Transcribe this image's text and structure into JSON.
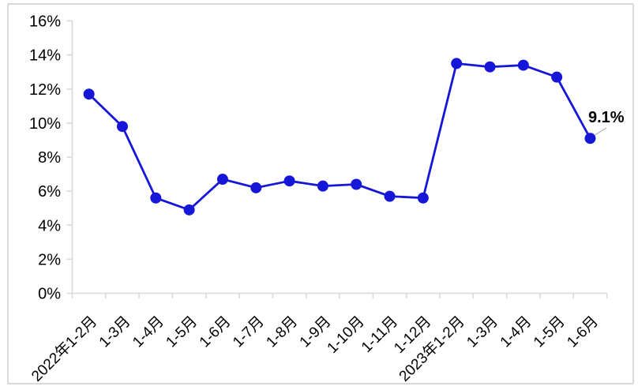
{
  "chart_data": {
    "type": "line",
    "title": "",
    "categories": [
      "2022年1-2月",
      "1-3月",
      "1-4月",
      "1-5月",
      "1-6月",
      "1-7月",
      "1-8月",
      "1-9月",
      "1-10月",
      "1-11月",
      "1-12月",
      "2023年1-2月",
      "1-3月",
      "1-4月",
      "1-5月",
      "1-6月"
    ],
    "values": [
      11.7,
      9.8,
      5.6,
      4.9,
      6.7,
      6.2,
      6.6,
      6.3,
      6.4,
      5.7,
      5.6,
      13.5,
      13.3,
      13.4,
      12.7,
      9.1
    ],
    "unit": "%",
    "xlabel": "",
    "ylabel": "",
    "ylim": [
      0,
      16
    ],
    "ytick_step": 2,
    "y_tick_labels": [
      "0%",
      "2%",
      "4%",
      "6%",
      "8%",
      "10%",
      "12%",
      "14%",
      "16%"
    ],
    "grid": false,
    "legend_position": "none",
    "x_label_rotation_deg": -45,
    "annotation": {
      "text": "9.1%",
      "point_index": 15
    },
    "colors": {
      "line": "#1616d9",
      "marker": "#1616d9",
      "axis": "#d9d9d9",
      "text": "#000000",
      "leader_line": "#b3b3b3",
      "frame_border": "#d9d9d9"
    }
  }
}
